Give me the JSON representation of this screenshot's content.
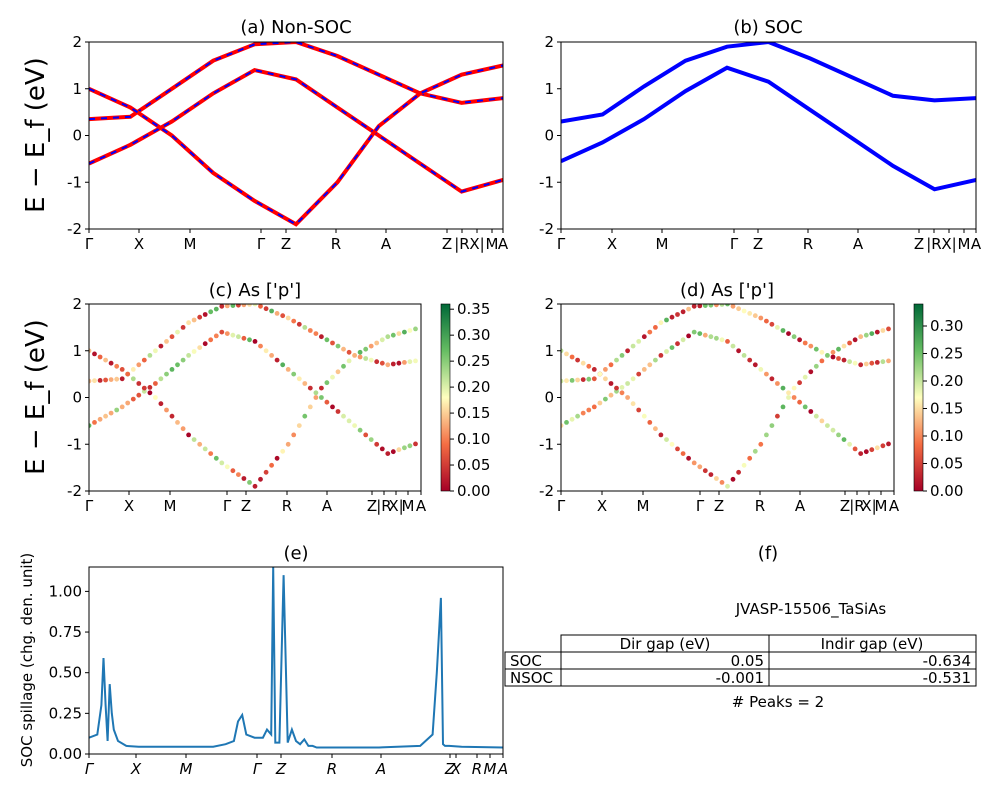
{
  "figure_title": "",
  "colors": {
    "nsoc": "#ff0000",
    "soc": "#0000ff",
    "spillage": "#1f77b4"
  },
  "chart_data": [
    {
      "id": "a",
      "type": "line",
      "title": "(a) Non-SOC",
      "ylabel": "E − E_f (eV)",
      "ylim": [
        -2,
        2
      ],
      "yticks": [
        "-2",
        "-1",
        "0",
        "1",
        "2"
      ],
      "kpath_labels": [
        "Γ",
        "X",
        "M",
        "Γ",
        "Z",
        "R",
        "A",
        "Z",
        "|R",
        "X|",
        "M",
        "A"
      ],
      "series": [
        {
          "x": [
            0,
            0.1,
            0.2,
            0.3,
            0.4,
            0.5,
            0.6,
            0.7,
            0.8,
            0.9,
            1
          ],
          "values": [
            0.35,
            0.4,
            1.0,
            1.6,
            1.95,
            2,
            1.7,
            1.3,
            0.9,
            0.7,
            0.8
          ]
        },
        {
          "x": [
            0,
            0.1,
            0.2,
            0.3,
            0.4,
            0.5,
            0.6,
            0.7,
            0.8,
            0.9,
            1
          ],
          "values": [
            -0.6,
            -0.2,
            0.3,
            0.9,
            1.4,
            1.2,
            0.6,
            0.0,
            -0.6,
            -1.2,
            -0.95
          ]
        },
        {
          "x": [
            0,
            0.1,
            0.2,
            0.3,
            0.4,
            0.5,
            0.6,
            0.7,
            0.8,
            0.9,
            1
          ],
          "values": [
            1.0,
            0.6,
            0.0,
            -0.8,
            -1.4,
            -1.9,
            -1.0,
            0.2,
            0.9,
            1.3,
            1.5
          ]
        }
      ]
    },
    {
      "id": "b",
      "type": "line",
      "title": "(b) SOC",
      "ylim": [
        -2,
        2
      ],
      "yticks": [
        "-2",
        "-1",
        "0",
        "1",
        "2"
      ],
      "kpath_labels": [
        "Γ",
        "X",
        "M",
        "Γ",
        "Z",
        "R",
        "A",
        "Z",
        "|R",
        "X|",
        "M",
        "A"
      ],
      "series": [
        {
          "x": [
            0,
            0.1,
            0.2,
            0.3,
            0.4,
            0.5,
            0.6,
            0.7,
            0.8,
            0.9,
            1
          ],
          "values": [
            0.3,
            0.45,
            1.05,
            1.6,
            1.9,
            2,
            1.65,
            1.25,
            0.85,
            0.75,
            0.8
          ]
        },
        {
          "x": [
            0,
            0.1,
            0.2,
            0.3,
            0.4,
            0.5,
            0.6,
            0.7,
            0.8,
            0.9,
            1
          ],
          "values": [
            -0.55,
            -0.15,
            0.35,
            0.95,
            1.45,
            1.15,
            0.55,
            -0.05,
            -0.65,
            -1.15,
            -0.95
          ]
        }
      ]
    },
    {
      "id": "c",
      "type": "scatter",
      "title": "(c)  As ['p']",
      "ylabel": "E − E_f (eV)",
      "ylim": [
        -2,
        2
      ],
      "yticks": [
        "-2",
        "-1",
        "0",
        "1",
        "2"
      ],
      "kpath_labels": [
        "Γ",
        "X",
        "M",
        "Γ",
        "Z",
        "R",
        "A",
        "Z",
        "|R",
        "X|",
        "M",
        "A"
      ],
      "colorbar": {
        "ticks": [
          "0.00",
          "0.05",
          "0.10",
          "0.15",
          "0.20",
          "0.25",
          "0.30",
          "0.35"
        ],
        "max": 0.36
      }
    },
    {
      "id": "d",
      "type": "scatter",
      "title": "(d) As ['p']",
      "ylim": [
        -2,
        2
      ],
      "yticks": [
        "-2",
        "-1",
        "0",
        "1",
        "2"
      ],
      "kpath_labels": [
        "Γ",
        "X",
        "M",
        "Γ",
        "Z",
        "R",
        "A",
        "Z",
        "|R",
        "X|",
        "M",
        "A"
      ],
      "colorbar": {
        "ticks": [
          "0.00",
          "0.05",
          "0.10",
          "0.15",
          "0.20",
          "0.25",
          "0.30"
        ],
        "max": 0.34
      }
    },
    {
      "id": "e",
      "type": "line",
      "title": "(e)",
      "ylabel": "SOC spillage (chg. den. unit)",
      "ylim": [
        0,
        1.15
      ],
      "yticks": [
        "0.00",
        "0.25",
        "0.50",
        "0.75",
        "1.00"
      ],
      "kpath_labels": [
        "Γ",
        "X",
        "M",
        "Γ",
        "Z",
        "R",
        "A",
        "Z",
        "X",
        "R",
        "M",
        "A"
      ],
      "series": [
        {
          "name": "spillage",
          "x": [
            0,
            0.02,
            0.03,
            0.035,
            0.04,
            0.045,
            0.05,
            0.055,
            0.06,
            0.07,
            0.09,
            0.12,
            0.2,
            0.3,
            0.33,
            0.35,
            0.36,
            0.37,
            0.38,
            0.4,
            0.42,
            0.43,
            0.44,
            0.445,
            0.45,
            0.455,
            0.46,
            0.47,
            0.48,
            0.49,
            0.5,
            0.51,
            0.52,
            0.53,
            0.54,
            0.55,
            0.6,
            0.7,
            0.8,
            0.83,
            0.84,
            0.85,
            0.855,
            0.86,
            0.87,
            0.9,
            1.0
          ],
          "values": [
            0.1,
            0.12,
            0.3,
            0.59,
            0.3,
            0.08,
            0.43,
            0.25,
            0.15,
            0.08,
            0.05,
            0.045,
            0.045,
            0.045,
            0.06,
            0.08,
            0.2,
            0.24,
            0.12,
            0.1,
            0.1,
            0.15,
            0.12,
            1.15,
            0.07,
            0.07,
            0.07,
            1.1,
            0.07,
            0.15,
            0.08,
            0.06,
            0.09,
            0.05,
            0.05,
            0.04,
            0.04,
            0.04,
            0.05,
            0.12,
            0.5,
            0.96,
            0.06,
            0.05,
            0.05,
            0.045,
            0.04
          ]
        }
      ]
    }
  ],
  "panel_f": {
    "title": "(f)",
    "material": "JVASP-15506_TaSiAs",
    "columns": [
      "Dir gap (eV)",
      "Indir gap (eV)"
    ],
    "rows": [
      {
        "label": "SOC",
        "dir": "0.05",
        "indir": "-0.634"
      },
      {
        "label": "NSOC",
        "dir": "-0.001",
        "indir": "-0.531"
      }
    ],
    "peaks": "# Peaks = 2"
  }
}
